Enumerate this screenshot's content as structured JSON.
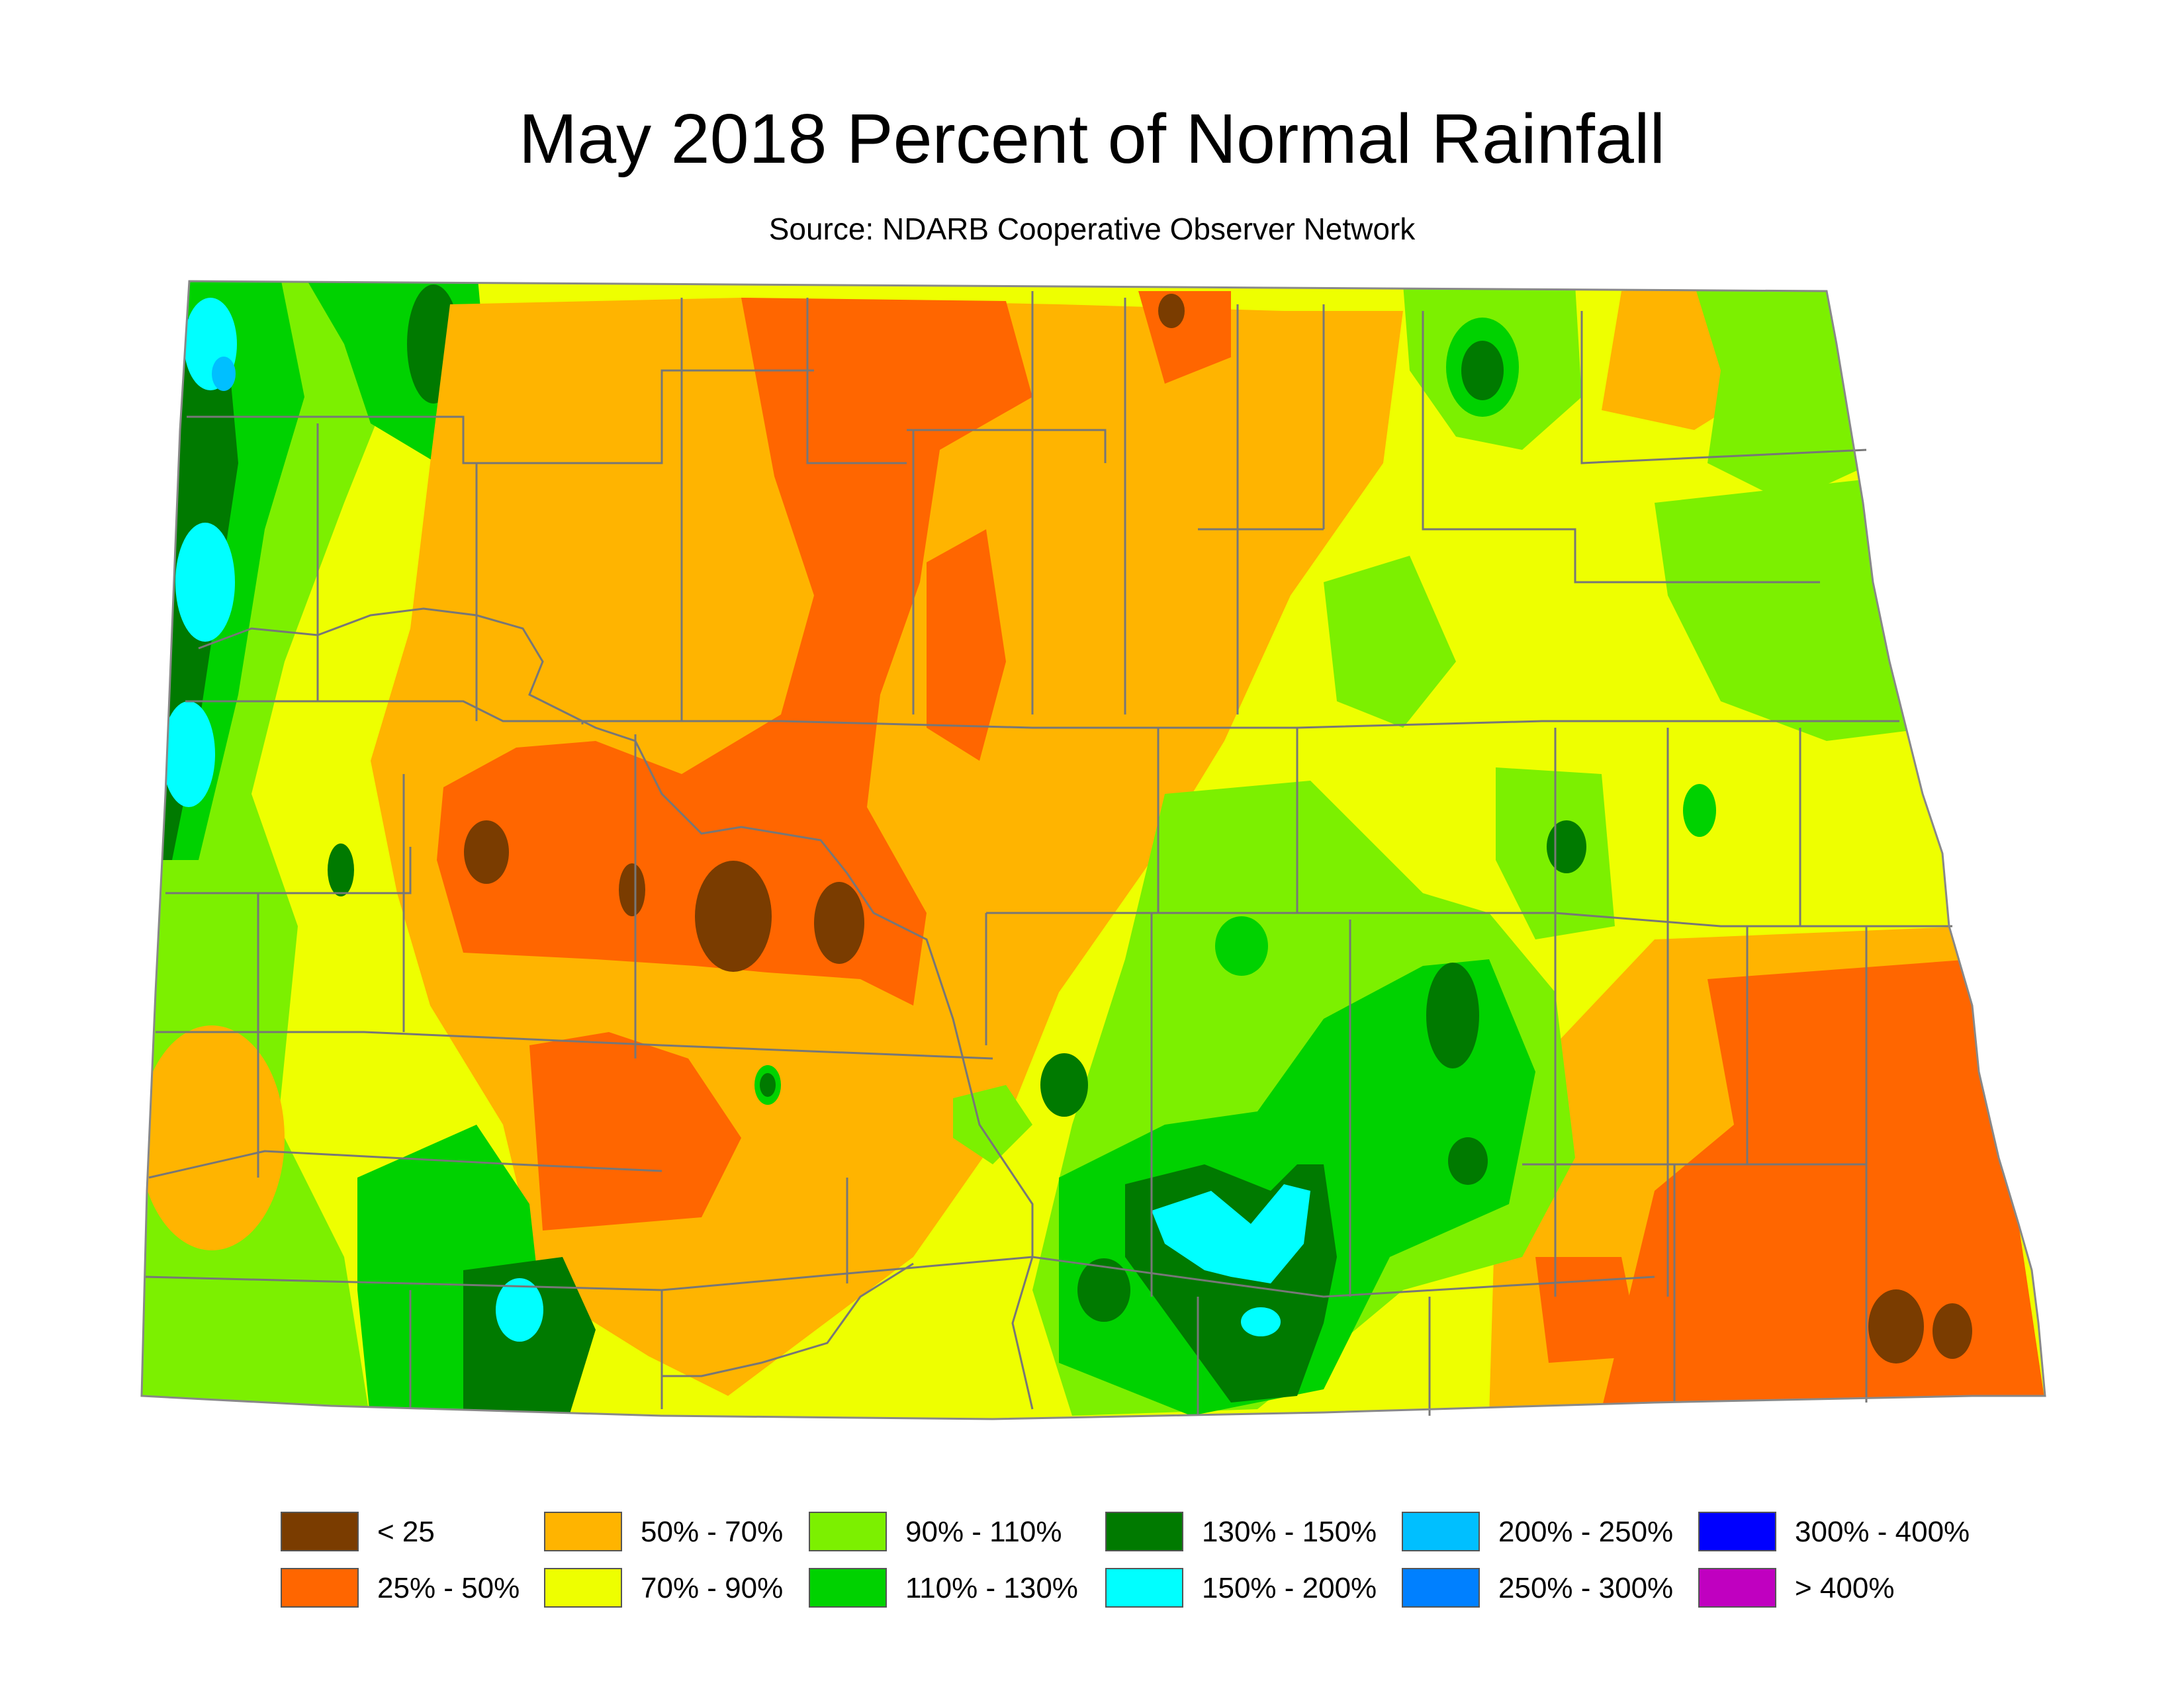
{
  "header": {
    "title": "May 2018 Percent of Normal Rainfall",
    "subtitle": "Source: NDARB Cooperative Observer Network"
  },
  "legend": [
    {
      "label": "< 25",
      "color": "#7a3c00"
    },
    {
      "label": "25% - 50%",
      "color": "#ff6600"
    },
    {
      "label": "50% - 70%",
      "color": "#ffb400"
    },
    {
      "label": "70% - 90%",
      "color": "#eeff00"
    },
    {
      "label": "90% - 110%",
      "color": "#7cf000"
    },
    {
      "label": "110% - 130%",
      "color": "#00d200"
    },
    {
      "label": "130% - 150%",
      "color": "#007a00"
    },
    {
      "label": "150% - 200%",
      "color": "#00ffff"
    },
    {
      "label": "200% - 250%",
      "color": "#00bfff"
    },
    {
      "label": "250% - 300%",
      "color": "#0080ff"
    },
    {
      "label": "300% - 400%",
      "color": "#0000ff"
    },
    {
      "label": "> 400%",
      "color": "#c000c0"
    }
  ],
  "colors": {
    "county_border": "#777777",
    "state_border": "#888888"
  }
}
